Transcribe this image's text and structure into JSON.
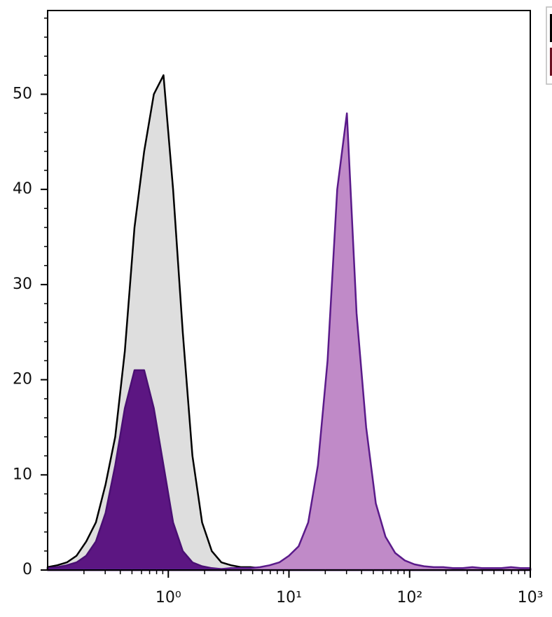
{
  "chart_data": {
    "type": "histogram",
    "x": [
      0.1,
      0.1202,
      0.1445,
      0.1738,
      0.2089,
      0.2512,
      0.302,
      0.3631,
      0.4365,
      0.5248,
      0.631,
      0.7586,
      0.912,
      1.096,
      1.318,
      1.585,
      1.905,
      2.291,
      2.754,
      3.311,
      3.981,
      4.786,
      5.754,
      6.918,
      8.318,
      10,
      12.02,
      14.45,
      17.38,
      20.89,
      25.12,
      30.2,
      36.31,
      43.65,
      52.48,
      63.1,
      75.86,
      91.2,
      109.6,
      131.8,
      158.5,
      190.5,
      229.1,
      275.4,
      331.1,
      398.1,
      478.6,
      575.4,
      691.8,
      831.8,
      1000
    ],
    "series": [
      {
        "color": "#000000",
        "fill": "#dedede",
        "values": [
          0.3,
          0.5,
          0.8,
          1.5,
          3,
          5,
          9,
          14,
          23,
          36,
          44,
          50,
          52,
          40,
          25,
          12,
          5,
          2,
          0.8,
          0.5,
          0.3,
          0.3,
          0.2,
          0.2,
          0.2,
          0.2,
          0.1,
          0.1,
          0.1,
          0.1,
          0.1,
          0.1,
          0.1,
          0.1,
          0.1,
          0.1,
          0.1,
          0.1,
          0.1,
          0.1,
          0.1,
          0.1,
          0.1,
          0.1,
          0.1,
          0.1,
          0.1,
          0.1,
          0.1,
          0.1,
          0.1
        ]
      },
      {
        "color": "#5a1a8a",
        "fill": "#c08ac8",
        "values": [
          0.1,
          0.1,
          0.1,
          0.1,
          0.1,
          0.1,
          0.1,
          0.1,
          0.1,
          0.1,
          0.1,
          0.1,
          0.1,
          0.1,
          0.1,
          0.1,
          0.1,
          0.1,
          0.1,
          0.2,
          0.2,
          0.2,
          0.3,
          0.5,
          0.8,
          1.5,
          2.5,
          5,
          11,
          22,
          40,
          48,
          27,
          15,
          7,
          3.5,
          1.8,
          1,
          0.6,
          0.4,
          0.3,
          0.3,
          0.2,
          0.2,
          0.3,
          0.2,
          0.2,
          0.2,
          0.3,
          0.2,
          0.2
        ]
      },
      {
        "color": "#4a0f73",
        "fill": "#5c1682",
        "values": [
          0.2,
          0.3,
          0.5,
          0.8,
          1.5,
          3,
          6,
          11,
          17,
          21,
          21,
          17,
          11,
          5,
          2,
          0.8,
          0.4,
          0.2,
          0.1,
          0.1,
          0.1,
          0.1,
          0.1,
          0.1,
          0.1,
          0.1,
          0.1,
          0.1,
          0.1,
          0.1,
          0.1,
          0.1,
          0.1,
          0.1,
          0.1,
          0.1,
          0.1,
          0.1,
          0.1,
          0.1,
          0.1,
          0.1,
          0.1,
          0.1,
          0.1,
          0.1,
          0.1,
          0.1,
          0.1,
          0.1,
          0.1
        ]
      }
    ],
    "xlim": [
      0.1,
      1000
    ],
    "xscale": "log",
    "xticks": [
      {
        "value": 1,
        "label": "10⁰"
      },
      {
        "value": 10,
        "label": "10¹"
      },
      {
        "value": 100,
        "label": "10²"
      },
      {
        "value": 1000,
        "label": "10³"
      }
    ],
    "ylim": [
      0,
      58.8
    ],
    "yticks": [
      0,
      10,
      20,
      30,
      40,
      50
    ],
    "legend_colors": [
      "#000000",
      "#6b1020"
    ]
  }
}
